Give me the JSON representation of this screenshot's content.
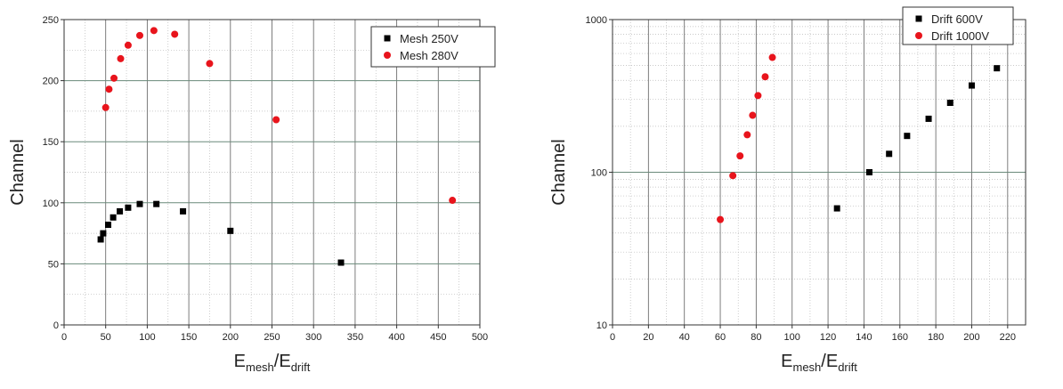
{
  "chart_data": [
    {
      "type": "scatter",
      "xlabel_main": "E",
      "xlabel_sub1": "mesh",
      "xlabel_mid": "/E",
      "xlabel_sub2": "drift",
      "ylabel": "Channel",
      "xlim": [
        0,
        500
      ],
      "ylim": [
        0,
        250
      ],
      "xticks": [
        0,
        50,
        100,
        150,
        200,
        250,
        300,
        350,
        400,
        450,
        500
      ],
      "yticks": [
        0,
        50,
        100,
        150,
        200,
        250
      ],
      "legend_position": "top-right",
      "grid": true,
      "series": [
        {
          "name": "Mesh 250V",
          "marker": "square",
          "color": "#000000",
          "x": [
            44,
            47,
            53,
            59,
            67,
            77,
            91,
            111,
            143,
            200,
            333
          ],
          "y": [
            70,
            75,
            82,
            88,
            93,
            96,
            99,
            99,
            93,
            77,
            51
          ]
        },
        {
          "name": "Mesh 280V",
          "marker": "circle",
          "color": "#e8141c",
          "x": [
            50,
            54,
            60,
            68,
            77,
            91,
            108,
            133,
            175,
            255,
            467
          ],
          "y": [
            178,
            193,
            202,
            218,
            229,
            237,
            241,
            238,
            214,
            168,
            102
          ]
        }
      ]
    },
    {
      "type": "scatter",
      "xlabel_main": "E",
      "xlabel_sub1": "mesh",
      "xlabel_mid": "/E",
      "xlabel_sub2": "drift",
      "ylabel": "Channel",
      "xlim": [
        0,
        230
      ],
      "ylim": [
        10,
        1000
      ],
      "yscale": "log",
      "xticks": [
        0,
        20,
        40,
        60,
        80,
        100,
        120,
        140,
        160,
        180,
        200,
        220
      ],
      "yticks": [
        10,
        100,
        1000
      ],
      "legend_position": "top-right",
      "grid": true,
      "series": [
        {
          "name": "Drift 600V",
          "marker": "square",
          "color": "#000000",
          "x": [
            125,
            143,
            154,
            164,
            176,
            188,
            200,
            214
          ],
          "y": [
            58,
            100,
            132,
            173,
            224,
            285,
            370,
            480
          ]
        },
        {
          "name": "Drift 1000V",
          "marker": "circle",
          "color": "#e8141c",
          "x": [
            60,
            67,
            71,
            75,
            78,
            81,
            85,
            89
          ],
          "y": [
            49,
            95,
            128,
            176,
            236,
            318,
            422,
            565
          ]
        }
      ]
    }
  ]
}
